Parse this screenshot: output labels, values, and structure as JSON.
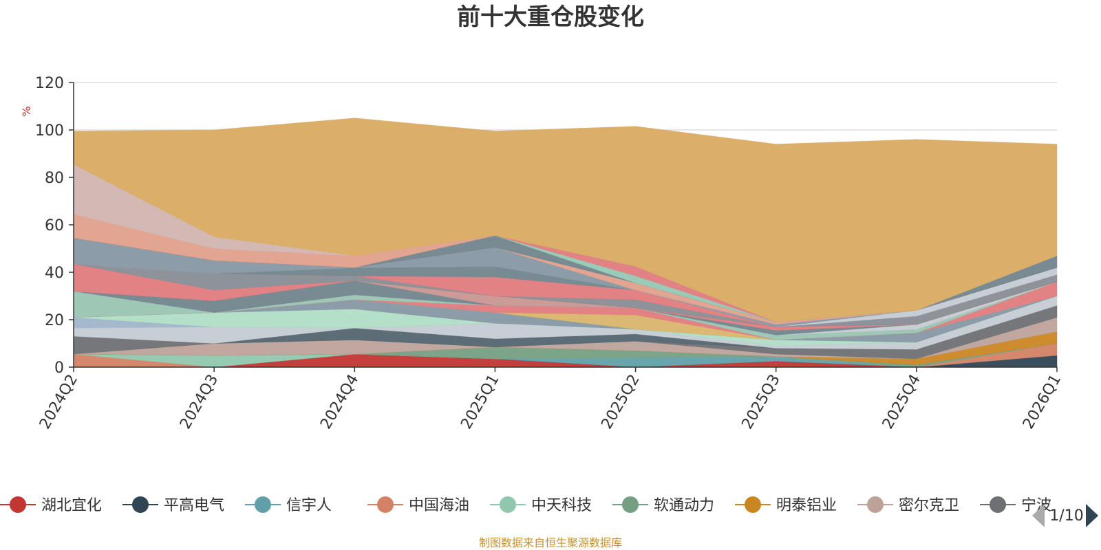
{
  "chart_data": {
    "type": "area",
    "stacked": true,
    "title": "前十大重仓股变化",
    "ylabel": "%",
    "ylim": [
      0,
      120
    ],
    "yticks": [
      0,
      20,
      40,
      60,
      80,
      100,
      120
    ],
    "grid": true,
    "legend_placement": "bottom",
    "x": [
      "2024Q2",
      "2024Q3",
      "2024Q4",
      "2025Q1",
      "2025Q2",
      "2025Q3",
      "2025Q4",
      "2026Q1"
    ],
    "series": [
      {
        "name": "湖北宜化",
        "color": "#c23531",
        "values": [
          0,
          0,
          5.5,
          3.5,
          0,
          2.5,
          0,
          0
        ]
      },
      {
        "name": "平高电气",
        "color": "#2f4554",
        "values": [
          0,
          0,
          0,
          0,
          0,
          0,
          0,
          5
        ]
      },
      {
        "name": "信宇人",
        "color": "#61a0a8",
        "values": [
          0,
          0,
          0,
          0,
          4,
          2,
          0,
          0
        ]
      },
      {
        "name": "中国海油",
        "color": "#d48265",
        "values": [
          5.5,
          0,
          0,
          0,
          0,
          0,
          0,
          5
        ]
      },
      {
        "name": "中天科技",
        "color": "#91c7ae",
        "values": [
          0,
          5,
          0,
          0,
          0,
          0,
          0,
          0
        ]
      },
      {
        "name": "软通动力",
        "color": "#749f83",
        "values": [
          0,
          0,
          0,
          5,
          3,
          0,
          1,
          0
        ]
      },
      {
        "name": "明泰铝业",
        "color": "#ca8622",
        "values": [
          0,
          0,
          0,
          0,
          0,
          0,
          2.5,
          5
        ]
      },
      {
        "name": "密尔克卫",
        "color": "#bda29a",
        "values": [
          0,
          5,
          6,
          0,
          4,
          1,
          0,
          6
        ]
      },
      {
        "name": "宁波",
        "color": "#6e7074",
        "values": [
          7.5,
          0,
          0,
          0,
          0,
          2.5,
          4,
          5
        ]
      },
      {
        "name": "",
        "color": "#546570",
        "values": [
          0,
          0,
          5,
          3.5,
          3,
          0,
          0,
          0
        ]
      },
      {
        "name": "",
        "color": "#c4ccd3",
        "values": [
          3.5,
          7,
          0,
          6.5,
          2,
          1,
          3,
          4
        ]
      },
      {
        "name": "",
        "color": "#9fb6c9",
        "values": [
          4.5,
          0,
          0,
          0,
          0,
          0,
          0,
          0
        ]
      },
      {
        "name": "",
        "color": "#b0ddc6",
        "values": [
          0,
          6,
          8,
          0,
          0,
          2.5,
          0,
          0
        ]
      },
      {
        "name": "",
        "color": "#8697a4",
        "values": [
          0,
          0,
          4,
          4.5,
          0,
          0,
          4,
          0
        ]
      },
      {
        "name": "",
        "color": "#dab56b",
        "values": [
          0,
          0,
          0,
          0,
          6,
          0,
          0,
          0
        ]
      },
      {
        "name": "",
        "color": "#e07b7e",
        "values": [
          0,
          0,
          0,
          3,
          3,
          0,
          0,
          6
        ]
      },
      {
        "name": "",
        "color": "#9ac4b2",
        "values": [
          11,
          0,
          2,
          0,
          0,
          2,
          1.5,
          0
        ]
      },
      {
        "name": "",
        "color": "#c4ccd3",
        "values": [
          0,
          0,
          0,
          0,
          0,
          0,
          2,
          0
        ]
      },
      {
        "name": "",
        "color": "#71858d",
        "values": [
          0,
          5,
          6,
          0,
          0,
          2,
          0,
          0
        ]
      },
      {
        "name": "",
        "color": "#c99692",
        "values": [
          0,
          0,
          0,
          4,
          0,
          0,
          0,
          0
        ]
      },
      {
        "name": "",
        "color": "#e07b7e",
        "values": [
          11.5,
          4.5,
          0,
          0,
          0,
          1.5,
          0,
          0
        ]
      },
      {
        "name": "",
        "color": "#888c93",
        "values": [
          0,
          7,
          2,
          0,
          3.5,
          0,
          3.5,
          3
        ]
      },
      {
        "name": "",
        "color": "#e07b7e",
        "values": [
          0,
          0,
          0,
          8,
          4,
          0,
          0,
          0
        ]
      },
      {
        "name": "",
        "color": "#71858d",
        "values": [
          0,
          0,
          3.5,
          4.5,
          0,
          0,
          0,
          0
        ]
      },
      {
        "name": "",
        "color": "#c4ccd3",
        "values": [
          0,
          0,
          0,
          0,
          0,
          0,
          2.5,
          3
        ]
      },
      {
        "name": "",
        "color": "#8697a4",
        "values": [
          11,
          5.5,
          0,
          8,
          0,
          1,
          0,
          0
        ]
      },
      {
        "name": "",
        "color": "#e0a08c",
        "values": [
          0,
          0,
          0,
          0,
          3,
          1,
          0,
          0
        ]
      },
      {
        "name": "",
        "color": "#71858d",
        "values": [
          0,
          0,
          0,
          5,
          0,
          0,
          0,
          0
        ]
      },
      {
        "name": "",
        "color": "#95c8b4",
        "values": [
          0,
          0,
          0,
          0,
          3,
          0,
          0,
          0
        ]
      },
      {
        "name": "",
        "color": "#e07b7e",
        "values": [
          0,
          0,
          0,
          0,
          4,
          0,
          0,
          0
        ]
      },
      {
        "name": "",
        "color": "#71858d",
        "values": [
          0,
          0,
          0,
          0,
          0,
          0,
          0,
          5
        ]
      },
      {
        "name": "",
        "color": "#e0a08c",
        "values": [
          10,
          5,
          5,
          0,
          0,
          0,
          0,
          0
        ]
      },
      {
        "name": "",
        "color": "#d2b4b0",
        "values": [
          21,
          5,
          0,
          0,
          0,
          0,
          0,
          0
        ]
      },
      {
        "name": "",
        "color": "#d9aa62",
        "values": [
          14,
          45,
          58,
          44,
          59,
          75,
          72,
          47
        ]
      }
    ]
  },
  "legend": {
    "items": [
      {
        "label": "湖北宜化",
        "color": "#c23531"
      },
      {
        "label": "平高电气",
        "color": "#2f4554"
      },
      {
        "label": "信宇人",
        "color": "#61a0a8"
      },
      {
        "label": "中国海油",
        "color": "#d48265"
      },
      {
        "label": "中天科技",
        "color": "#91c7ae"
      },
      {
        "label": "软通动力",
        "color": "#749f83"
      },
      {
        "label": "明泰铝业",
        "color": "#ca8622"
      },
      {
        "label": "密尔克卫",
        "color": "#bda29a"
      },
      {
        "label": "宁波",
        "color": "#6e7074"
      }
    ],
    "page_text": "1/10"
  },
  "source_text": "制图数据来自恒生聚源数据库"
}
